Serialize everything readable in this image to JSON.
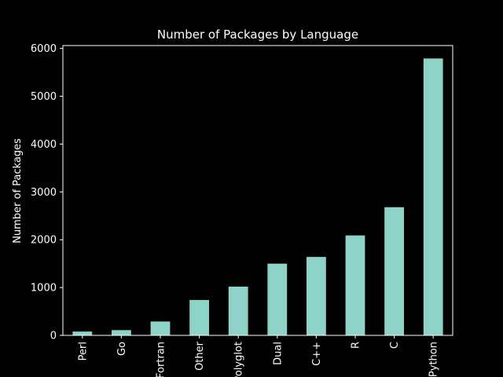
{
  "chart_data": {
    "type": "bar",
    "title": "Number of Packages by Language",
    "xlabel": "",
    "ylabel": "Number of Packages",
    "categories": [
      "Perl",
      "Go",
      "Fortran",
      "Other",
      "Polyglot",
      "Dual",
      "C++",
      "R",
      "C",
      "Python"
    ],
    "values": [
      80,
      110,
      290,
      740,
      1020,
      1500,
      1640,
      2090,
      2680,
      5790
    ],
    "ylim": [
      0,
      6060
    ],
    "yticks": [
      0,
      1000,
      2000,
      3000,
      4000,
      5000,
      6000
    ],
    "grid": false,
    "legend": "none",
    "bar_color": "#8dd3c7",
    "background": "#000000",
    "axis_color": "#ffffff"
  }
}
